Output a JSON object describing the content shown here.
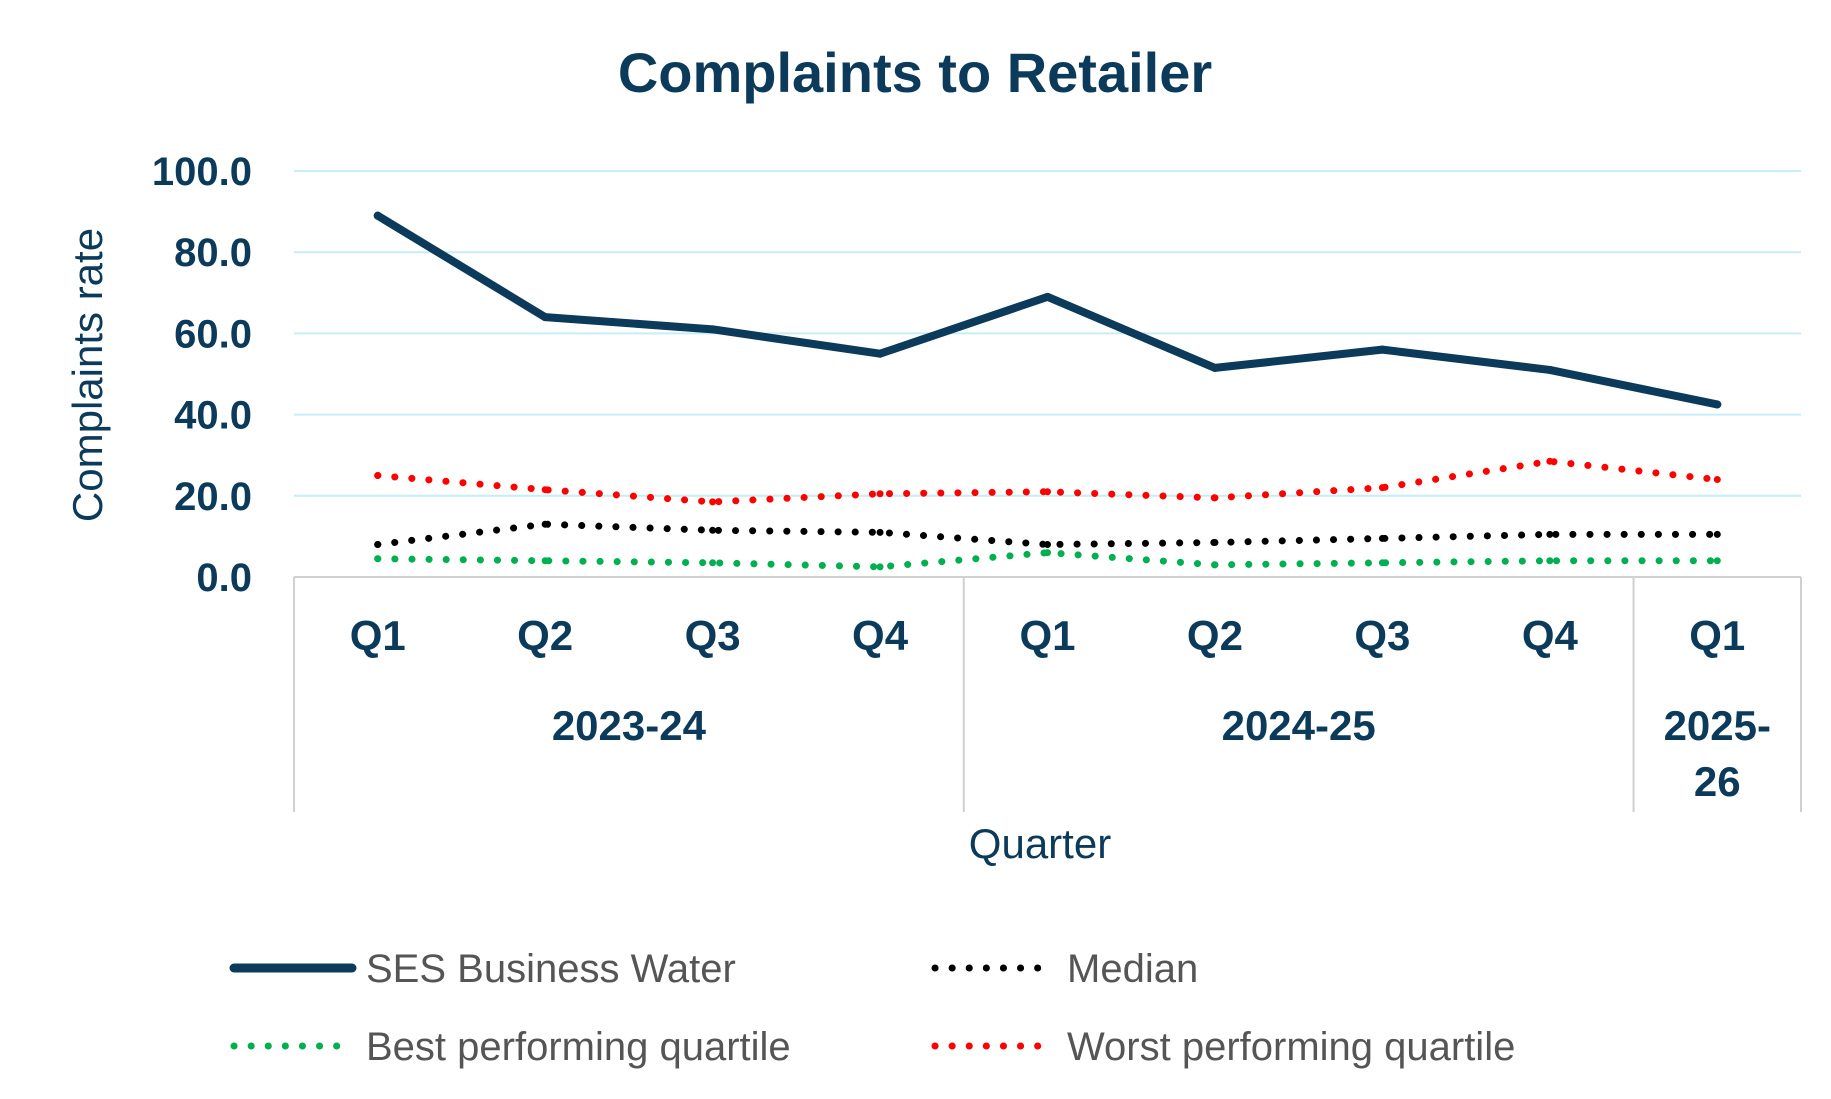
{
  "chart_data": {
    "type": "line",
    "title": "Complaints to Retailer",
    "xlabel": "Quarter",
    "ylabel": "Complaints rate",
    "ylim": [
      0,
      100
    ],
    "yticks": [
      "0.0",
      "20.0",
      "40.0",
      "60.0",
      "80.0",
      "100.0"
    ],
    "grid": true,
    "legend_position": "bottom",
    "categories": [
      "Q1",
      "Q2",
      "Q3",
      "Q4",
      "Q1",
      "Q2",
      "Q3",
      "Q4",
      "Q1"
    ],
    "groups": [
      {
        "label": "2023-24",
        "span": 4
      },
      {
        "label": "2024-25",
        "span": 4
      },
      {
        "label": "2025-26",
        "label_lines": [
          "2025-",
          "26"
        ],
        "span": 1
      }
    ],
    "series": [
      {
        "name": "SES Business Water",
        "style": "solid",
        "color": "#0b3a5a",
        "values": [
          89.0,
          64.0,
          61.0,
          55.0,
          69.0,
          51.5,
          56.0,
          51.0,
          42.5
        ]
      },
      {
        "name": "Median",
        "style": "dotted",
        "color": "#000000",
        "values": [
          8.0,
          13.0,
          11.5,
          11.0,
          8.0,
          8.5,
          9.5,
          10.5,
          10.5
        ]
      },
      {
        "name": "Best performing quartile",
        "style": "dotted",
        "color": "#00b050",
        "values": [
          4.5,
          4.0,
          3.5,
          2.5,
          6.0,
          3.0,
          3.5,
          4.0,
          4.0
        ]
      },
      {
        "name": "Worst performing quartile",
        "style": "dotted",
        "color": "#ff0000",
        "values": [
          25.0,
          21.5,
          18.5,
          20.5,
          21.0,
          19.5,
          22.0,
          28.5,
          24.0
        ]
      }
    ]
  }
}
